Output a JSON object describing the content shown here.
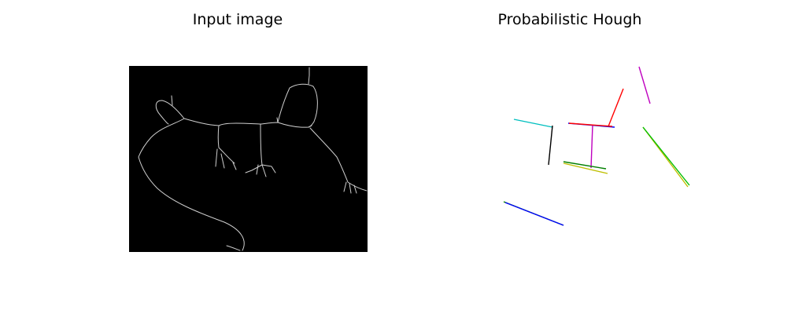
{
  "panels": {
    "left": {
      "title": "Input image"
    },
    "right": {
      "title": "Probabilistic Hough"
    }
  },
  "colors": {
    "image_background": "#000000",
    "edges": "#c8c8c8",
    "page_background": "#ffffff"
  },
  "hough_lines": [
    {
      "color": "#00bfbf",
      "name": "cyan"
    },
    {
      "color": "#000000",
      "name": "black"
    },
    {
      "color": "#ff0000",
      "name": "red"
    },
    {
      "color": "#0000ff",
      "name": "blue"
    },
    {
      "color": "#bf00bf",
      "name": "magenta"
    },
    {
      "color": "#bf00bf",
      "name": "magenta"
    },
    {
      "color": "#007f00",
      "name": "green"
    },
    {
      "color": "#bfbf00",
      "name": "olive"
    },
    {
      "color": "#bfbf00",
      "name": "olive"
    },
    {
      "color": "#00bf00",
      "name": "lime"
    },
    {
      "color": "#007f00",
      "name": "green"
    },
    {
      "color": "#0000ff",
      "name": "blue"
    },
    {
      "color": "#ff0000",
      "name": "red"
    }
  ]
}
